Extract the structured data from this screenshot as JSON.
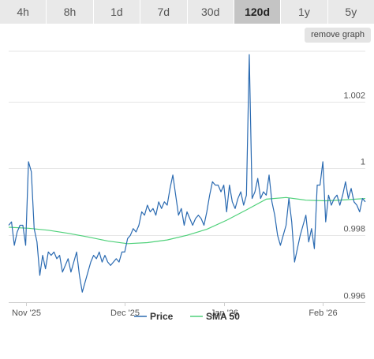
{
  "timeframes": [
    "4h",
    "8h",
    "1d",
    "7d",
    "30d",
    "120d",
    "1y",
    "5y"
  ],
  "active_timeframe": "120d",
  "remove_graph_label": "remove graph",
  "colors": {
    "price": "#2a6ab1",
    "sma": "#4fd17a",
    "grid": "#e6e6e6",
    "tab_active": "#c4c4c4",
    "tab": "#e9e9e9"
  },
  "chart_data": {
    "type": "line",
    "x_unit": "date",
    "x_range": [
      "2025-10-21",
      "2026-02-24"
    ],
    "x_tick_labels": [
      {
        "date": "2025-10-27",
        "label": "Nov '25"
      },
      {
        "date": "2025-12-01",
        "label": "Dec '25"
      },
      {
        "date": "2026-01-05",
        "label": "Jan '26"
      },
      {
        "date": "2026-02-09",
        "label": "Feb '26"
      }
    ],
    "ylim": [
      0.996,
      1.0035
    ],
    "y_ticks": [
      0.996,
      0.998,
      1.0,
      1.002
    ],
    "y_tick_labels": [
      "0.996",
      "0.998",
      "1",
      "1.002"
    ],
    "grid": true,
    "legend_position": "bottom",
    "series": [
      {
        "name": "Price",
        "points": [
          [
            "2025-10-21",
            0.9983
          ],
          [
            "2025-10-22",
            0.9984
          ],
          [
            "2025-10-23",
            0.9977
          ],
          [
            "2025-10-24",
            0.9981
          ],
          [
            "2025-10-25",
            0.9983
          ],
          [
            "2025-10-26",
            0.9983
          ],
          [
            "2025-10-27",
            0.9977
          ],
          [
            "2025-10-28",
            1.0002
          ],
          [
            "2025-10-29",
            0.9999
          ],
          [
            "2025-10-30",
            0.9982
          ],
          [
            "2025-10-31",
            0.9978
          ],
          [
            "2025-11-01",
            0.9968
          ],
          [
            "2025-11-02",
            0.9974
          ],
          [
            "2025-11-03",
            0.997
          ],
          [
            "2025-11-04",
            0.9975
          ],
          [
            "2025-11-05",
            0.9974
          ],
          [
            "2025-11-06",
            0.9975
          ],
          [
            "2025-11-07",
            0.9973
          ],
          [
            "2025-11-08",
            0.9974
          ],
          [
            "2025-11-09",
            0.9969
          ],
          [
            "2025-11-10",
            0.9971
          ],
          [
            "2025-11-11",
            0.9973
          ],
          [
            "2025-11-12",
            0.9969
          ],
          [
            "2025-11-13",
            0.9972
          ],
          [
            "2025-11-14",
            0.9975
          ],
          [
            "2025-11-15",
            0.9968
          ],
          [
            "2025-11-16",
            0.9963
          ],
          [
            "2025-11-17",
            0.9966
          ],
          [
            "2025-11-18",
            0.9969
          ],
          [
            "2025-11-19",
            0.9972
          ],
          [
            "2025-11-20",
            0.9974
          ],
          [
            "2025-11-21",
            0.9973
          ],
          [
            "2025-11-22",
            0.9975
          ],
          [
            "2025-11-23",
            0.9972
          ],
          [
            "2025-11-24",
            0.9974
          ],
          [
            "2025-11-25",
            0.9972
          ],
          [
            "2025-11-26",
            0.9971
          ],
          [
            "2025-11-27",
            0.9972
          ],
          [
            "2025-11-28",
            0.9973
          ],
          [
            "2025-11-29",
            0.9972
          ],
          [
            "2025-11-30",
            0.9975
          ],
          [
            "2025-12-01",
            0.9975
          ],
          [
            "2025-12-02",
            0.9979
          ],
          [
            "2025-12-03",
            0.998
          ],
          [
            "2025-12-04",
            0.9982
          ],
          [
            "2025-12-05",
            0.9981
          ],
          [
            "2025-12-06",
            0.9983
          ],
          [
            "2025-12-07",
            0.9987
          ],
          [
            "2025-12-08",
            0.9986
          ],
          [
            "2025-12-09",
            0.9989
          ],
          [
            "2025-12-10",
            0.9987
          ],
          [
            "2025-12-11",
            0.9988
          ],
          [
            "2025-12-12",
            0.9986
          ],
          [
            "2025-12-13",
            0.999
          ],
          [
            "2025-12-14",
            0.9988
          ],
          [
            "2025-12-15",
            0.999
          ],
          [
            "2025-12-16",
            0.9989
          ],
          [
            "2025-12-17",
            0.9994
          ],
          [
            "2025-12-18",
            0.9998
          ],
          [
            "2025-12-19",
            0.9992
          ],
          [
            "2025-12-20",
            0.9986
          ],
          [
            "2025-12-21",
            0.9988
          ],
          [
            "2025-12-22",
            0.9983
          ],
          [
            "2025-12-23",
            0.9987
          ],
          [
            "2025-12-24",
            0.9985
          ],
          [
            "2025-12-25",
            0.9983
          ],
          [
            "2025-12-26",
            0.9985
          ],
          [
            "2025-12-27",
            0.9986
          ],
          [
            "2025-12-28",
            0.9985
          ],
          [
            "2025-12-29",
            0.9983
          ],
          [
            "2025-12-30",
            0.9987
          ],
          [
            "2025-12-31",
            0.9992
          ],
          [
            "2026-01-01",
            0.9996
          ],
          [
            "2026-01-02",
            0.9995
          ],
          [
            "2026-01-03",
            0.9995
          ],
          [
            "2026-01-04",
            0.9993
          ],
          [
            "2026-01-05",
            0.9995
          ],
          [
            "2026-01-06",
            0.9987
          ],
          [
            "2026-01-07",
            0.9995
          ],
          [
            "2026-01-08",
            0.999
          ],
          [
            "2026-01-09",
            0.9988
          ],
          [
            "2026-01-10",
            0.9991
          ],
          [
            "2026-01-11",
            0.9993
          ],
          [
            "2026-01-12",
            0.9989
          ],
          [
            "2026-01-13",
            0.9992
          ],
          [
            "2026-01-14",
            1.0034
          ],
          [
            "2026-01-15",
            0.9991
          ],
          [
            "2026-01-16",
            0.9993
          ],
          [
            "2026-01-17",
            0.9997
          ],
          [
            "2026-01-18",
            0.9991
          ],
          [
            "2026-01-19",
            0.9993
          ],
          [
            "2026-01-20",
            0.9992
          ],
          [
            "2026-01-21",
            0.9998
          ],
          [
            "2026-01-22",
            0.999
          ],
          [
            "2026-01-23",
            0.9986
          ],
          [
            "2026-01-24",
            0.998
          ],
          [
            "2026-01-25",
            0.9977
          ],
          [
            "2026-01-26",
            0.998
          ],
          [
            "2026-01-27",
            0.9983
          ],
          [
            "2026-01-28",
            0.9991
          ],
          [
            "2026-01-29",
            0.9984
          ],
          [
            "2026-01-30",
            0.9972
          ],
          [
            "2026-01-31",
            0.9976
          ],
          [
            "2026-02-01",
            0.998
          ],
          [
            "2026-02-02",
            0.9983
          ],
          [
            "2026-02-03",
            0.9986
          ],
          [
            "2026-02-04",
            0.9978
          ],
          [
            "2026-02-05",
            0.9982
          ],
          [
            "2026-02-06",
            0.9976
          ],
          [
            "2026-02-07",
            0.9995
          ],
          [
            "2026-02-08",
            0.9995
          ],
          [
            "2026-02-09",
            1.0002
          ],
          [
            "2026-02-10",
            0.9984
          ],
          [
            "2026-02-11",
            0.9992
          ],
          [
            "2026-02-12",
            0.9989
          ],
          [
            "2026-02-13",
            0.9991
          ],
          [
            "2026-02-14",
            0.9992
          ],
          [
            "2026-02-15",
            0.9989
          ],
          [
            "2026-02-16",
            0.9992
          ],
          [
            "2026-02-17",
            0.9996
          ],
          [
            "2026-02-18",
            0.9991
          ],
          [
            "2026-02-19",
            0.9994
          ],
          [
            "2026-02-20",
            0.999
          ],
          [
            "2026-02-21",
            0.9989
          ],
          [
            "2026-02-22",
            0.9987
          ],
          [
            "2026-02-23",
            0.9991
          ],
          [
            "2026-02-24",
            0.999
          ]
        ]
      },
      {
        "name": "SMA 50",
        "points": [
          [
            "2025-10-21",
            0.99824
          ],
          [
            "2025-10-28",
            0.99821
          ],
          [
            "2025-11-04",
            0.99815
          ],
          [
            "2025-11-11",
            0.99806
          ],
          [
            "2025-11-18",
            0.99795
          ],
          [
            "2025-11-25",
            0.99783
          ],
          [
            "2025-12-02",
            0.99775
          ],
          [
            "2025-12-09",
            0.99778
          ],
          [
            "2025-12-16",
            0.99786
          ],
          [
            "2025-12-23",
            0.998
          ],
          [
            "2025-12-30",
            0.99818
          ],
          [
            "2026-01-06",
            0.99845
          ],
          [
            "2026-01-13",
            0.99876
          ],
          [
            "2026-01-20",
            0.99908
          ],
          [
            "2026-01-27",
            0.99913
          ],
          [
            "2026-02-03",
            0.99905
          ],
          [
            "2026-02-10",
            0.99903
          ],
          [
            "2026-02-17",
            0.99906
          ],
          [
            "2026-02-24",
            0.9991
          ]
        ]
      }
    ]
  }
}
